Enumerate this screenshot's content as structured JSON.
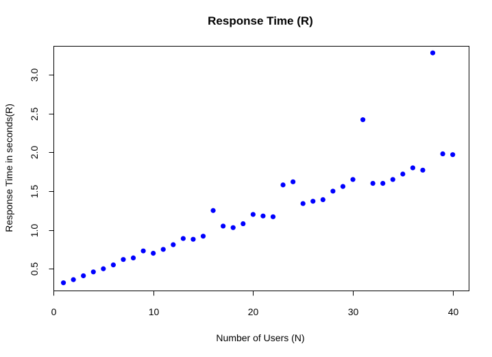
{
  "chart_data": {
    "type": "scatter",
    "title": "Response Time (R)",
    "xlabel": "Number of Users (N)",
    "ylabel": "Response Time in seconds(R)",
    "xlim": [
      0,
      41.6
    ],
    "ylim": [
      0.22,
      3.37
    ],
    "x_ticks": [
      0,
      10,
      20,
      30,
      40
    ],
    "x_tick_labels": [
      "0",
      "10",
      "20",
      "30",
      "40"
    ],
    "y_ticks": [
      0.5,
      1.0,
      1.5,
      2.0,
      2.5,
      3.0
    ],
    "y_tick_labels": [
      "0.5",
      "1.0",
      "1.5",
      "2.0",
      "2.5",
      "3.0"
    ],
    "grid": false,
    "marker_color": "#0000FF",
    "series": [
      {
        "x": [
          1,
          2,
          3,
          4,
          5,
          6,
          7,
          8,
          9,
          10,
          11,
          12,
          13,
          14,
          15,
          16,
          17,
          18,
          19,
          20,
          21,
          22,
          23,
          24,
          25,
          26,
          27,
          28,
          29,
          30,
          31,
          32,
          33,
          34,
          35,
          36,
          37,
          38,
          39,
          40
        ],
        "y": [
          0.32,
          0.36,
          0.41,
          0.46,
          0.5,
          0.55,
          0.62,
          0.64,
          0.73,
          0.7,
          0.75,
          0.81,
          0.89,
          0.88,
          0.92,
          1.25,
          1.05,
          1.03,
          1.08,
          1.2,
          1.18,
          1.17,
          1.58,
          1.62,
          1.34,
          1.37,
          1.39,
          1.5,
          1.56,
          1.65,
          2.42,
          1.6,
          1.6,
          1.65,
          1.72,
          1.8,
          1.77,
          3.28,
          1.98,
          1.97
        ]
      }
    ]
  }
}
